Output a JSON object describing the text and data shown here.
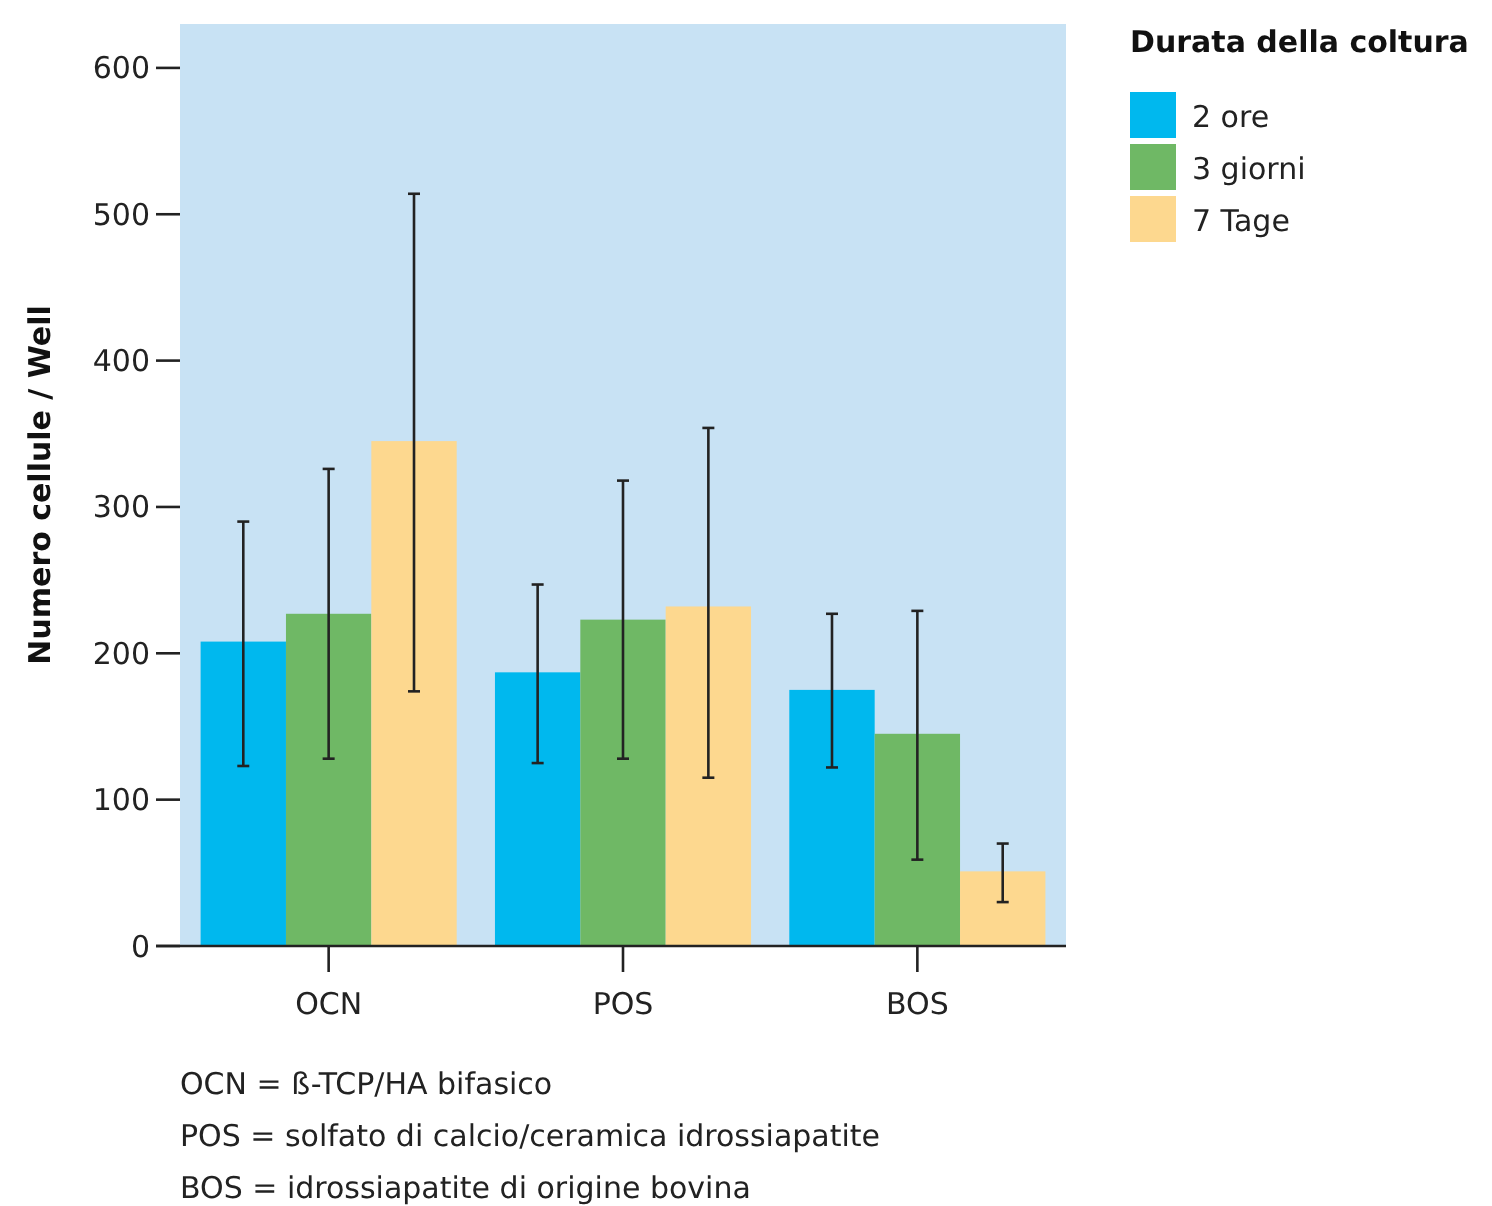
{
  "chart_data": {
    "type": "bar",
    "ylabel": "Numero cellule / Well",
    "legend_title": "Durata della coltura",
    "categories": [
      "OCN",
      "POS",
      "BOS"
    ],
    "series": [
      {
        "name": "2 ore",
        "color": "#00b8ee",
        "values": [
          208,
          187,
          175
        ],
        "errors": [
          [
            123,
            290
          ],
          [
            125,
            247
          ],
          [
            122,
            227
          ]
        ]
      },
      {
        "name": "3 giorni",
        "color": "#6fb865",
        "values": [
          227,
          223,
          145
        ],
        "errors": [
          [
            128,
            326
          ],
          [
            128,
            318
          ],
          [
            59,
            229
          ]
        ]
      },
      {
        "name": "7 Tage",
        "color": "#fdd88f",
        "values": [
          345,
          232,
          51
        ],
        "errors": [
          [
            174,
            514
          ],
          [
            115,
            354
          ],
          [
            30,
            70
          ]
        ]
      }
    ],
    "ylim": [
      0,
      630
    ],
    "yticks": [
      0,
      100,
      200,
      300,
      400,
      500,
      600
    ],
    "grid": false,
    "legend": "top right",
    "annotations": [
      "OCN = ß-TCP/HA bifasico",
      "POS = solfato di calcio/ceramica idrossiapatite",
      "BOS = idrossiapatite di origine bovina"
    ]
  }
}
